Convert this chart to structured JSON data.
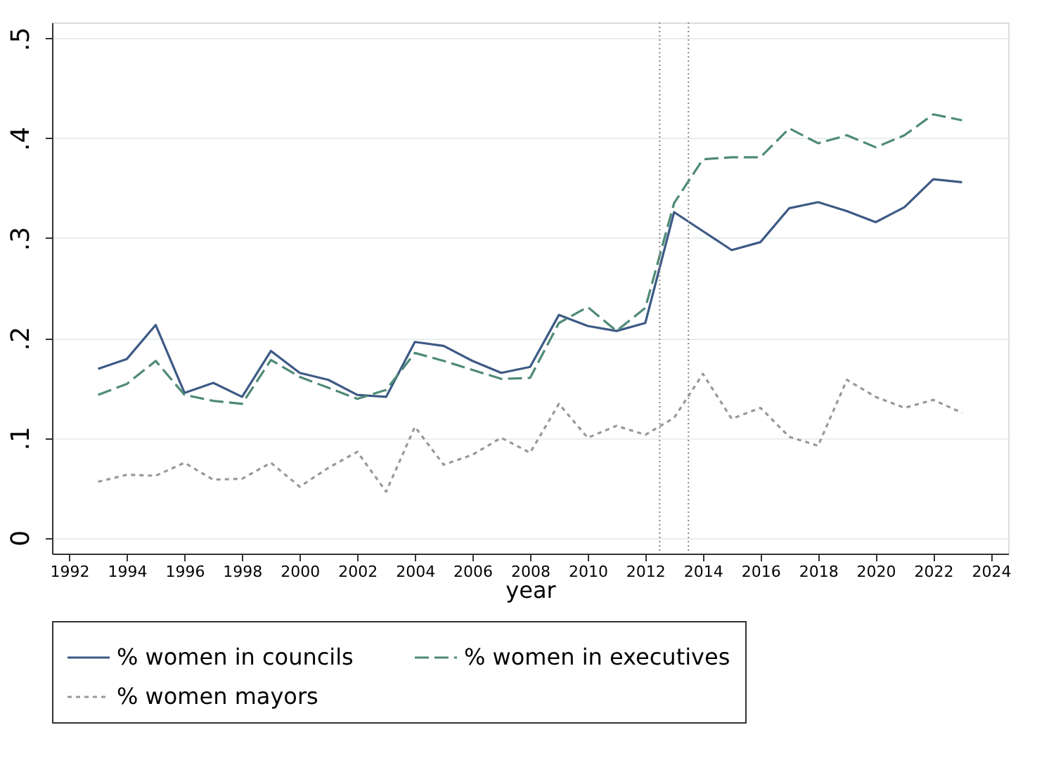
{
  "chart_data": {
    "type": "line",
    "xlabel": "year",
    "x": [
      1993,
      1994,
      1995,
      1996,
      1997,
      1998,
      1999,
      2000,
      2001,
      2002,
      2003,
      2004,
      2005,
      2006,
      2007,
      2008,
      2009,
      2010,
      2011,
      2012,
      2013,
      2014,
      2015,
      2016,
      2017,
      2018,
      2019,
      2020,
      2021,
      2022,
      2023
    ],
    "series": [
      {
        "name": "% women in councils",
        "color": "#3d5a85",
        "line_style": "solid",
        "values": [
          0.169,
          0.179,
          0.213,
          0.145,
          0.155,
          0.141,
          0.187,
          0.165,
          0.158,
          0.143,
          0.141,
          0.196,
          0.192,
          0.177,
          0.165,
          0.171,
          0.223,
          0.212,
          0.207,
          0.215,
          0.326,
          0.307,
          0.288,
          0.296,
          0.33,
          0.336,
          0.327,
          0.316,
          0.331,
          0.359,
          0.356
        ]
      },
      {
        "name": "% women in executives",
        "color": "#4f8a78",
        "line_style": "dashed",
        "values": [
          0.143,
          0.154,
          0.177,
          0.143,
          0.137,
          0.134,
          0.178,
          0.161,
          0.15,
          0.139,
          0.148,
          0.185,
          0.177,
          0.168,
          0.159,
          0.16,
          0.215,
          0.231,
          0.207,
          0.23,
          0.335,
          0.379,
          0.381,
          0.381,
          0.41,
          0.395,
          0.403,
          0.391,
          0.403,
          0.424,
          0.418
        ]
      },
      {
        "name": "% women mayors",
        "color": "#999999",
        "line_style": "dotted",
        "values": [
          0.056,
          0.063,
          0.062,
          0.075,
          0.058,
          0.059,
          0.075,
          0.051,
          0.07,
          0.086,
          0.046,
          0.111,
          0.073,
          0.083,
          0.1,
          0.085,
          0.134,
          0.1,
          0.112,
          0.103,
          0.12,
          0.164,
          0.119,
          0.13,
          0.101,
          0.092,
          0.158,
          0.141,
          0.13,
          0.138,
          0.125
        ]
      }
    ],
    "xlim": [
      1991.4,
      2024.6
    ],
    "xticks": [
      1992,
      1994,
      1996,
      1998,
      2000,
      2002,
      2004,
      2006,
      2008,
      2010,
      2012,
      2014,
      2016,
      2018,
      2020,
      2022,
      2024
    ],
    "ylim": [
      -0.016,
      0.516
    ],
    "yticks": [
      {
        "value": 0,
        "label": "0"
      },
      {
        "value": 0.1,
        "label": ".1"
      },
      {
        "value": 0.2,
        "label": ".2"
      },
      {
        "value": 0.3,
        "label": ".3"
      },
      {
        "value": 0.4,
        "label": ".4"
      },
      {
        "value": 0.5,
        "label": ".5"
      }
    ],
    "ref_lines": [
      {
        "axis": "x",
        "value": 2012.5,
        "color": "#888888",
        "line_style": "dotted"
      },
      {
        "axis": "x",
        "value": 2013.5,
        "color": "#888888",
        "line_style": "dotted"
      }
    ],
    "grid": "y",
    "legend": "bottom"
  }
}
